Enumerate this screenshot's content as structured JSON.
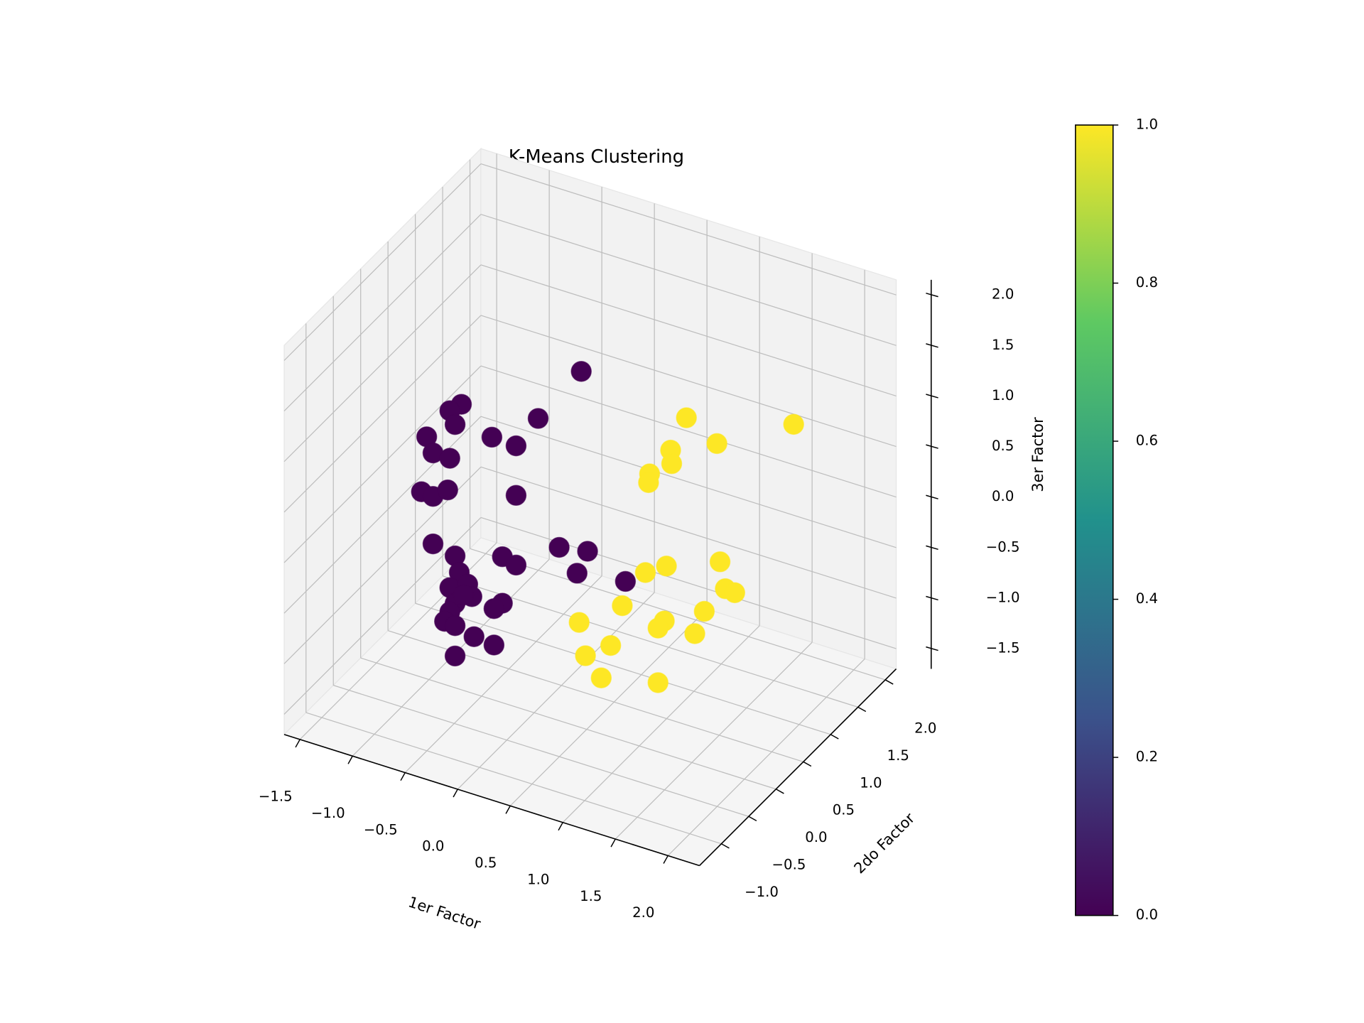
{
  "chart_data": {
    "type": "scatter3d",
    "title": "K-Means Clustering",
    "xlabel": "1er Factor",
    "ylabel": "2do Factor",
    "zlabel": "3er Factor",
    "xlim": [
      -1.65,
      2.3
    ],
    "ylim": [
      -1.4,
      2.2
    ],
    "zlim": [
      -1.7,
      2.15
    ],
    "xticks": [
      {
        "value": -1.5,
        "label": "−1.5"
      },
      {
        "value": -1,
        "label": "−1.0"
      },
      {
        "value": -0.5,
        "label": "−0.5"
      },
      {
        "value": 0,
        "label": "0.0"
      },
      0.5,
      {
        "value": 1,
        "label": "1.0"
      },
      1.5,
      {
        "value": 2,
        "label": "2.0"
      }
    ],
    "yticks": [
      {
        "value": -1,
        "label": "−1.0"
      },
      {
        "value": -0.5,
        "label": "−0.5"
      },
      {
        "value": 0,
        "label": "0.0"
      },
      0.5,
      {
        "value": 1,
        "label": "1.0"
      },
      1.5,
      {
        "value": 2,
        "label": "2.0"
      }
    ],
    "zticks": [
      {
        "value": -1.5,
        "label": "−1.5"
      },
      {
        "value": -1,
        "label": "−1.0"
      },
      {
        "value": -0.5,
        "label": "−0.5"
      },
      {
        "value": 0,
        "label": "0.0"
      },
      0.5,
      {
        "value": 1,
        "label": "1.0"
      },
      1.5,
      {
        "value": 2,
        "label": "2.0"
      }
    ],
    "grid": true,
    "x": [
      0.24,
      -0.17,
      -0.9,
      -1.01,
      -0.96,
      -1.23,
      -1.17,
      -1.01,
      -0.61,
      -0.38,
      -1.28,
      -1.17,
      -1.03,
      -0.38,
      -1.17,
      -0.96,
      -0.51,
      -0.38,
      0.03,
      0.3,
      0.2,
      0.66,
      -0.92,
      -1.01,
      -0.84,
      -0.8,
      -0.96,
      -0.51,
      -0.59,
      -1.01,
      -1.06,
      -0.96,
      -0.78,
      -0.59,
      -0.96,
      -0.88,
      1.24,
      2.26,
      1.53,
      1.09,
      1.1,
      0.89,
      0.88,
      1.56,
      1.05,
      0.85,
      1.61,
      1.7,
      0.63,
      1.41,
      1.03,
      0.97,
      1.32,
      0.22,
      0.52,
      0.28,
      0.43,
      0.97
    ],
    "y": [
      0.4,
      0.4,
      0.4,
      0.4,
      0.4,
      0.4,
      0.4,
      0.4,
      0.4,
      0.4,
      0.4,
      0.4,
      0.4,
      0.4,
      0.4,
      0.4,
      0.4,
      0.4,
      0.4,
      0.4,
      0.4,
      0.4,
      0.4,
      0.4,
      0.4,
      0.4,
      0.4,
      0.4,
      0.4,
      0.4,
      0.4,
      0.4,
      0.4,
      0.4,
      0.4,
      0.4,
      0.4,
      0.4,
      0.4,
      0.4,
      0.4,
      0.4,
      0.4,
      0.4,
      0.4,
      0.4,
      0.4,
      0.4,
      0.4,
      0.4,
      0.4,
      0.4,
      0.4,
      0.4,
      0.4,
      0.4,
      0.4,
      0.4
    ],
    "z": [
      1.54,
      0.94,
      0.84,
      0.74,
      0.62,
      0.41,
      0.27,
      0.27,
      0.61,
      0.6,
      -0.15,
      -0.16,
      -0.05,
      0.11,
      -0.63,
      -0.68,
      -0.54,
      -0.58,
      -0.27,
      -0.22,
      -0.47,
      -0.4,
      -0.83,
      -1.01,
      -0.92,
      -1.03,
      -1.15,
      -1.0,
      -1.08,
      -1.25,
      -1.36,
      -1.37,
      -1.42,
      -1.44,
      -1.67,
      -1.04,
      1.41,
      1.68,
      1.25,
      1.04,
      0.91,
      0.74,
      0.65,
      0.09,
      -0.12,
      -0.25,
      -0.16,
      -0.17,
      -0.65,
      -0.45,
      -0.67,
      -0.76,
      -0.7,
      -0.95,
      -1.08,
      -1.26,
      -1.43,
      -1.3
    ],
    "c": [
      0,
      0,
      0,
      0,
      0,
      0,
      0,
      0,
      0,
      0,
      0,
      0,
      0,
      0,
      0,
      0,
      0,
      0,
      0,
      0,
      0,
      0,
      0,
      0,
      0,
      0,
      0,
      0,
      0,
      0,
      0,
      0,
      0,
      0,
      0,
      0,
      1,
      1,
      1,
      1,
      1,
      1,
      1,
      1,
      1,
      1,
      1,
      1,
      1,
      1,
      1,
      1,
      1,
      1,
      1,
      1,
      1,
      1
    ],
    "colormap": [
      "#440154",
      "#3b528b",
      "#21918c",
      "#5ec962",
      "#fde725"
    ],
    "clim": [
      0,
      1
    ],
    "cticks": [
      {
        "value": 0,
        "label": "0.0"
      },
      0.2,
      0.4,
      0.6,
      0.8,
      {
        "value": 1,
        "label": "1.0"
      }
    ]
  }
}
